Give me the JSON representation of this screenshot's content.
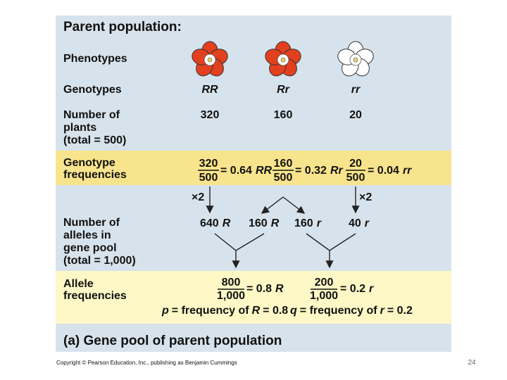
{
  "title": "Parent population:",
  "rows": {
    "phenotypes": "Phenotypes",
    "genotypes": "Genotypes",
    "plants": [
      "Number of",
      "plants",
      "(total = 500)"
    ],
    "genotype_frequencies": [
      "Genotype",
      "frequencies"
    ],
    "alleles": [
      "Number of",
      "alleles in",
      "gene pool",
      "(total = 1,000)"
    ],
    "allele_frequencies": [
      "Allele",
      "frequencies"
    ]
  },
  "genotypes": [
    {
      "label": "RR",
      "plants": "320",
      "numerator": "320",
      "denominator": "500",
      "result": "= 0.64",
      "allele": "RR"
    },
    {
      "label": "Rr",
      "plants": "160",
      "numerator": "160",
      "denominator": "500",
      "result": "= 0.32",
      "allele": "Rr"
    },
    {
      "label": "rr",
      "plants": "20",
      "numerator": "20",
      "denominator": "500",
      "result": "= 0.04",
      "allele": "rr"
    }
  ],
  "multipliers": [
    "×2",
    "×2"
  ],
  "alleles": [
    {
      "count": "640",
      "allele": "R"
    },
    {
      "count": "160",
      "allele": "R"
    },
    {
      "count": "160",
      "allele": "r"
    },
    {
      "count": "40",
      "allele": "r"
    }
  ],
  "allele_frequencies": [
    {
      "numerator": "800",
      "denominator": "1,000",
      "result": "= 0.8",
      "allele": "R"
    },
    {
      "numerator": "200",
      "denominator": "1,000",
      "result": "= 0.2",
      "allele": "r"
    }
  ],
  "summary": [
    {
      "symbol": "p",
      "text": "= frequency of",
      "allele": "R",
      "result": "= 0.8"
    },
    {
      "symbol": "q",
      "text": "= frequency of",
      "allele": "r",
      "result": "= 0.2"
    }
  ],
  "caption": "(a) Gene pool of parent population",
  "copyright": "Copyright © Pearson Education, Inc., publishing as Benjamin Cummings",
  "page_number": "24"
}
